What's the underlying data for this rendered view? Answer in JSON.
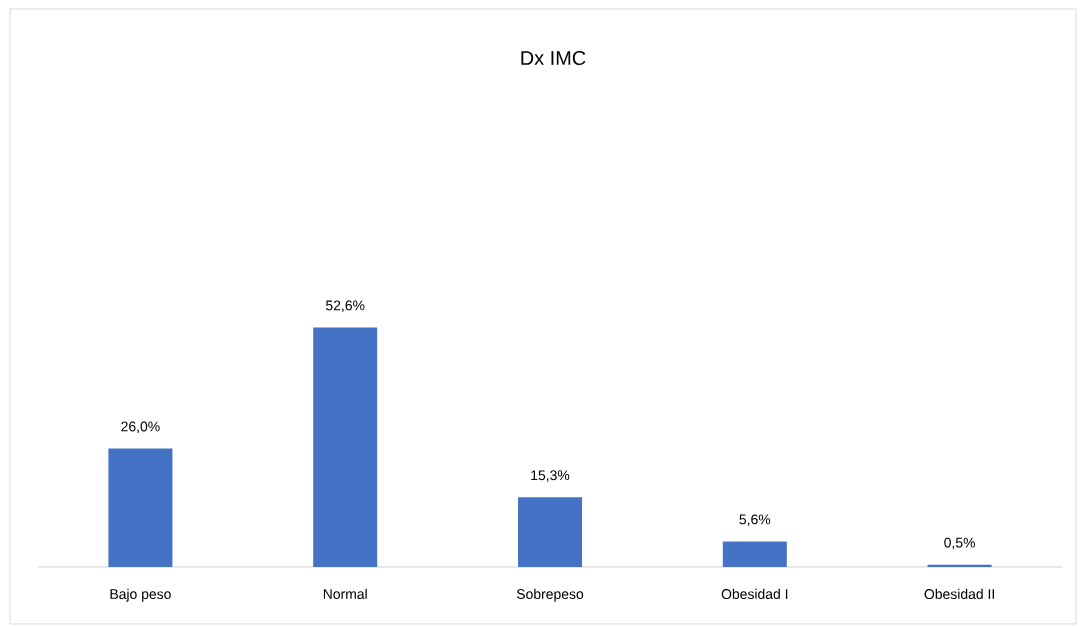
{
  "chart_data": {
    "type": "bar",
    "title": "Dx IMC",
    "categories": [
      "Bajo peso",
      "Normal",
      "Sobrepeso",
      "Obesidad I",
      "Obesidad II"
    ],
    "values": [
      26.0,
      52.6,
      15.3,
      5.6,
      0.5
    ],
    "value_labels": [
      "26,0%",
      "52,6%",
      "15,3%",
      "5,6%",
      "0,5%"
    ],
    "color": "#4472c4"
  }
}
